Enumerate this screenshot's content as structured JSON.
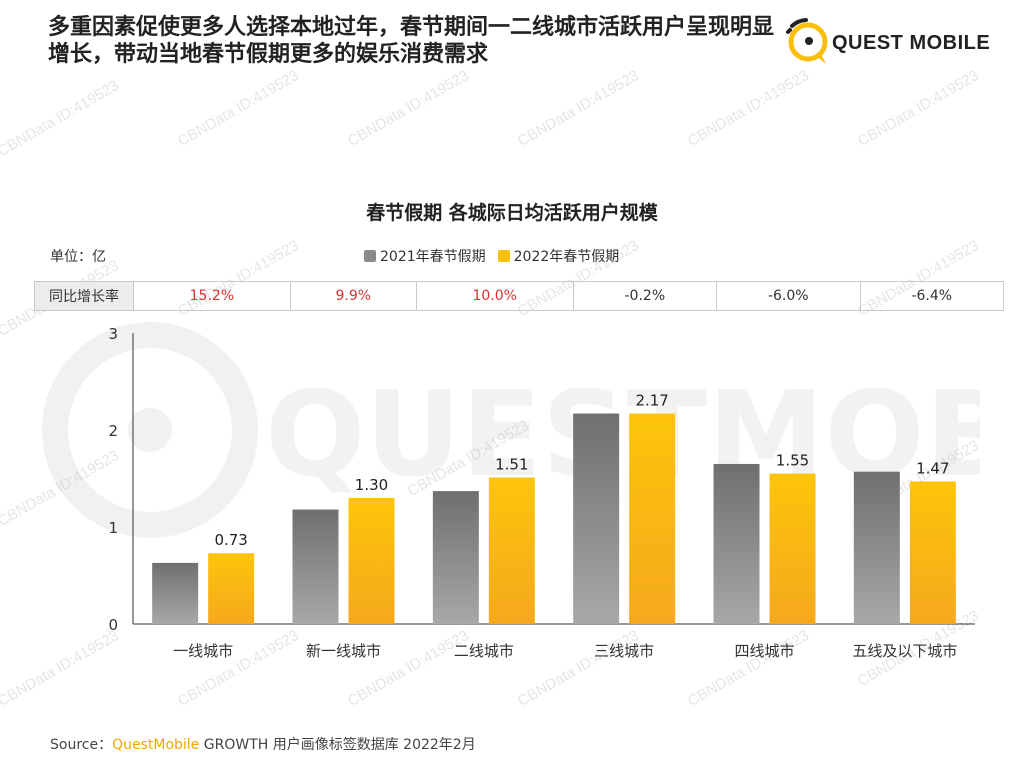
{
  "header": {
    "title": "多重因素促使更多人选择本地过年，春节期间一二线城市活跃用户呈现明显增长，带动当地春节假期更多的娱乐消费需求",
    "logo_text": "QUEST MOBILE",
    "logo_icon": "questmobile-logo-icon"
  },
  "watermark": {
    "big_text": "QUESTMOBILE",
    "small_text": "CBNData ID:419523"
  },
  "colors": {
    "series_2021": "#7a7a7a",
    "series_2022": "#fbbf0c",
    "positive_growth": "#e03030",
    "negative_growth": "#333333",
    "brand": "#f0a800"
  },
  "chart_data": {
    "type": "bar",
    "title": "春节假期 各城际日均活跃用户规模",
    "unit_label": "单位：亿",
    "categories": [
      "一线城市",
      "新一线城市",
      "二线城市",
      "三线城市",
      "四线城市",
      "五线及以下城市"
    ],
    "series": [
      {
        "name": "2021年春节假期",
        "values": [
          0.63,
          1.18,
          1.37,
          2.17,
          1.65,
          1.57
        ],
        "labeled": false
      },
      {
        "name": "2022年春节假期",
        "values": [
          0.73,
          1.3,
          1.51,
          2.17,
          1.55,
          1.47
        ],
        "labeled": true
      }
    ],
    "data_labels": [
      "0.73",
      "1.30",
      "1.51",
      "2.17",
      "1.55",
      "1.47"
    ],
    "ylim": [
      0,
      3
    ],
    "yticks": [
      "0",
      "1",
      "2",
      "3"
    ],
    "grid": false,
    "legend": "top-center",
    "growth_row": {
      "label": "同比增长率",
      "values": [
        "15.2%",
        "9.9%",
        "10.0%",
        "-0.2%",
        "-6.0%",
        "-6.4%"
      ]
    }
  },
  "footer": {
    "source_prefix": "Source：",
    "source_brand": "QuestMobile",
    "source_rest": " GROWTH 用户画像标签数据库 2022年2月"
  }
}
